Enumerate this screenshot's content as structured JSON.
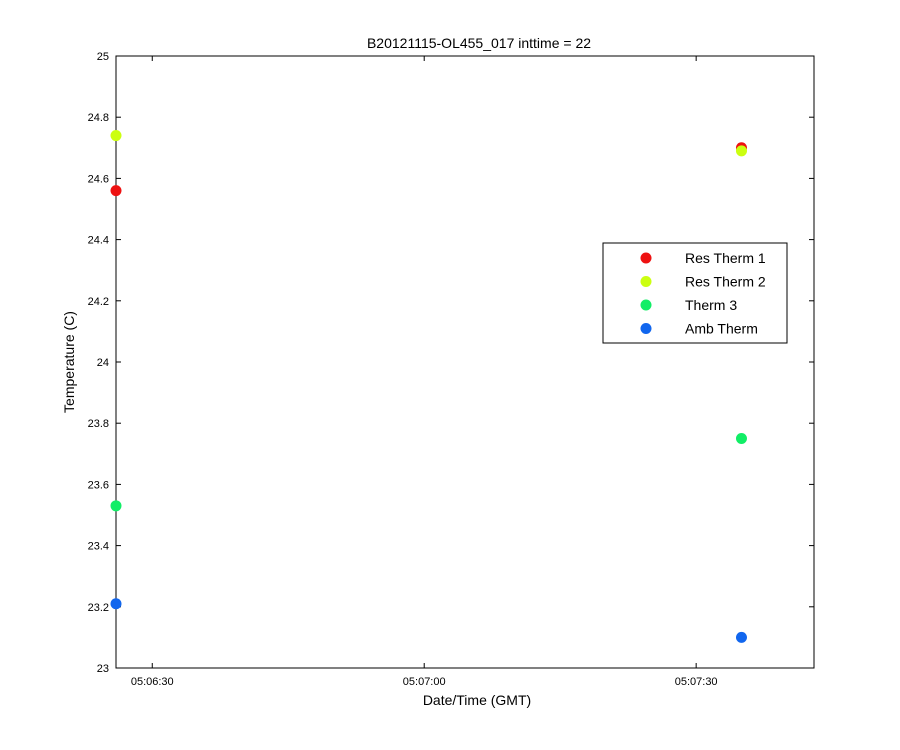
{
  "chart_data": {
    "type": "scatter",
    "title": "B20121115-OL455_017 inttime = 22",
    "xlabel": "Date/Time (GMT)",
    "ylabel": "Temperature (C)",
    "xlim": [
      "05:06:26",
      "05:07:43"
    ],
    "ylim": [
      23,
      25
    ],
    "x_ticks": [
      "05:06:30",
      "05:07:00",
      "05:07:30"
    ],
    "y_ticks": [
      "23",
      "23.2",
      "23.4",
      "23.6",
      "23.8",
      "24",
      "24.2",
      "24.4",
      "24.6",
      "24.8",
      "25"
    ],
    "grid": false,
    "legend_position": "right",
    "series": [
      {
        "name": "Res Therm 1",
        "color": "#ee1111",
        "points": [
          {
            "x": "05:06:26",
            "y": 24.56
          },
          {
            "x": "05:07:35",
            "y": 24.7
          }
        ]
      },
      {
        "name": "Res Therm 2",
        "color": "#ccff11",
        "points": [
          {
            "x": "05:06:26",
            "y": 24.74
          },
          {
            "x": "05:07:35",
            "y": 24.69
          }
        ]
      },
      {
        "name": "Therm 3",
        "color": "#11ee66",
        "points": [
          {
            "x": "05:06:26",
            "y": 23.53
          },
          {
            "x": "05:07:35",
            "y": 23.75
          }
        ]
      },
      {
        "name": "Amb Therm",
        "color": "#1166ee",
        "points": [
          {
            "x": "05:06:26",
            "y": 23.21
          },
          {
            "x": "05:07:35",
            "y": 23.1
          }
        ]
      }
    ]
  }
}
